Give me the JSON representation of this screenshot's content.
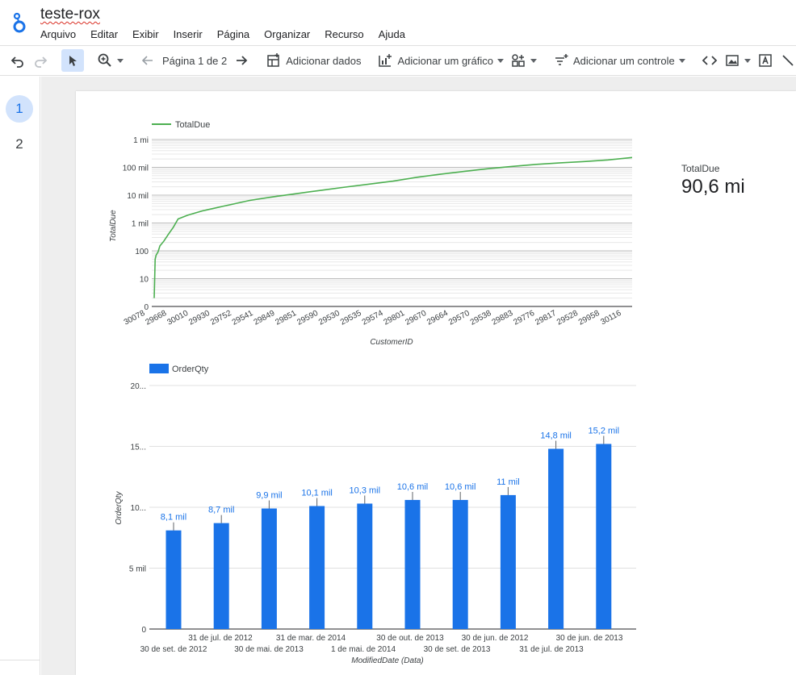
{
  "app": {
    "doc_title": "teste-rox",
    "menu": [
      "Arquivo",
      "Editar",
      "Exibir",
      "Inserir",
      "Página",
      "Organizar",
      "Recurso",
      "Ajuda"
    ]
  },
  "toolbar": {
    "page_indicator": "Página 1 de 2",
    "add_data": "Adicionar dados",
    "add_chart": "Adicionar um gráfico",
    "add_control": "Adicionar um controle"
  },
  "pages": [
    "1",
    "2"
  ],
  "scorecard": {
    "label": "TotalDue",
    "value": "90,6 mi"
  },
  "chart_data": [
    {
      "type": "line",
      "series": [
        {
          "name": "TotalDue",
          "color": "#4caf50"
        }
      ],
      "ylabel": "TotalDue",
      "xlabel": "CustomerID",
      "y_scale": "log",
      "y_ticks": [
        "0",
        "10",
        "100",
        "1 mil",
        "10 mil",
        "100 mil",
        "1 mi"
      ],
      "x_ticks": [
        "30078",
        "29668",
        "30010",
        "29930",
        "29752",
        "29541",
        "29849",
        "29851",
        "29590",
        "29530",
        "29535",
        "29574",
        "29801",
        "29670",
        "29664",
        "29570",
        "29538",
        "29883",
        "29776",
        "29817",
        "29528",
        "29958",
        "30116"
      ],
      "profile": [
        [
          0,
          2
        ],
        [
          0.002,
          50
        ],
        [
          0.004,
          70
        ],
        [
          0.008,
          90
        ],
        [
          0.012,
          150
        ],
        [
          0.02,
          220
        ],
        [
          0.03,
          400
        ],
        [
          0.04,
          700
        ],
        [
          0.05,
          1400
        ],
        [
          0.07,
          1900
        ],
        [
          0.1,
          2700
        ],
        [
          0.15,
          4200
        ],
        [
          0.2,
          6500
        ],
        [
          0.25,
          8800
        ],
        [
          0.3,
          11500
        ],
        [
          0.35,
          15000
        ],
        [
          0.4,
          19500
        ],
        [
          0.45,
          25000
        ],
        [
          0.5,
          32000
        ],
        [
          0.55,
          44000
        ],
        [
          0.6,
          57000
        ],
        [
          0.65,
          72000
        ],
        [
          0.7,
          90000
        ],
        [
          0.75,
          108000
        ],
        [
          0.8,
          128000
        ],
        [
          0.85,
          145000
        ],
        [
          0.9,
          162000
        ],
        [
          0.95,
          185000
        ],
        [
          1.0,
          225000
        ]
      ],
      "legend": "top-left"
    },
    {
      "type": "bar",
      "series": [
        {
          "name": "OrderQty",
          "color": "#1a73e8"
        }
      ],
      "ylabel": "OrderQty",
      "xlabel": "ModifiedDate (Data)",
      "ylim": [
        0,
        20000
      ],
      "y_ticks": [
        "0",
        "5 mil",
        "10...",
        "15...",
        "20..."
      ],
      "categories_top": [
        "31 de jul. de 2012",
        "31 de mar. de 2014",
        "30 de out. de 2013",
        "30 de jun. de 2012",
        "30 de jun. de 2013"
      ],
      "categories_bottom": [
        "30 de set. de 2012",
        "30 de mai. de 2013",
        "1 de mai. de 2014",
        "30 de set. de 2013",
        "31 de jul. de 2013"
      ],
      "values": [
        8100,
        8700,
        9900,
        10100,
        10300,
        10600,
        10600,
        11000,
        14800,
        15200
      ],
      "value_labels": [
        "8,1 mil",
        "8,7 mil",
        "9,9 mil",
        "10,1 mil",
        "10,3 mil",
        "10,6 mil",
        "10,6 mil",
        "11 mil",
        "14,8 mil",
        "15,2 mil"
      ],
      "legend": "top-left"
    }
  ]
}
